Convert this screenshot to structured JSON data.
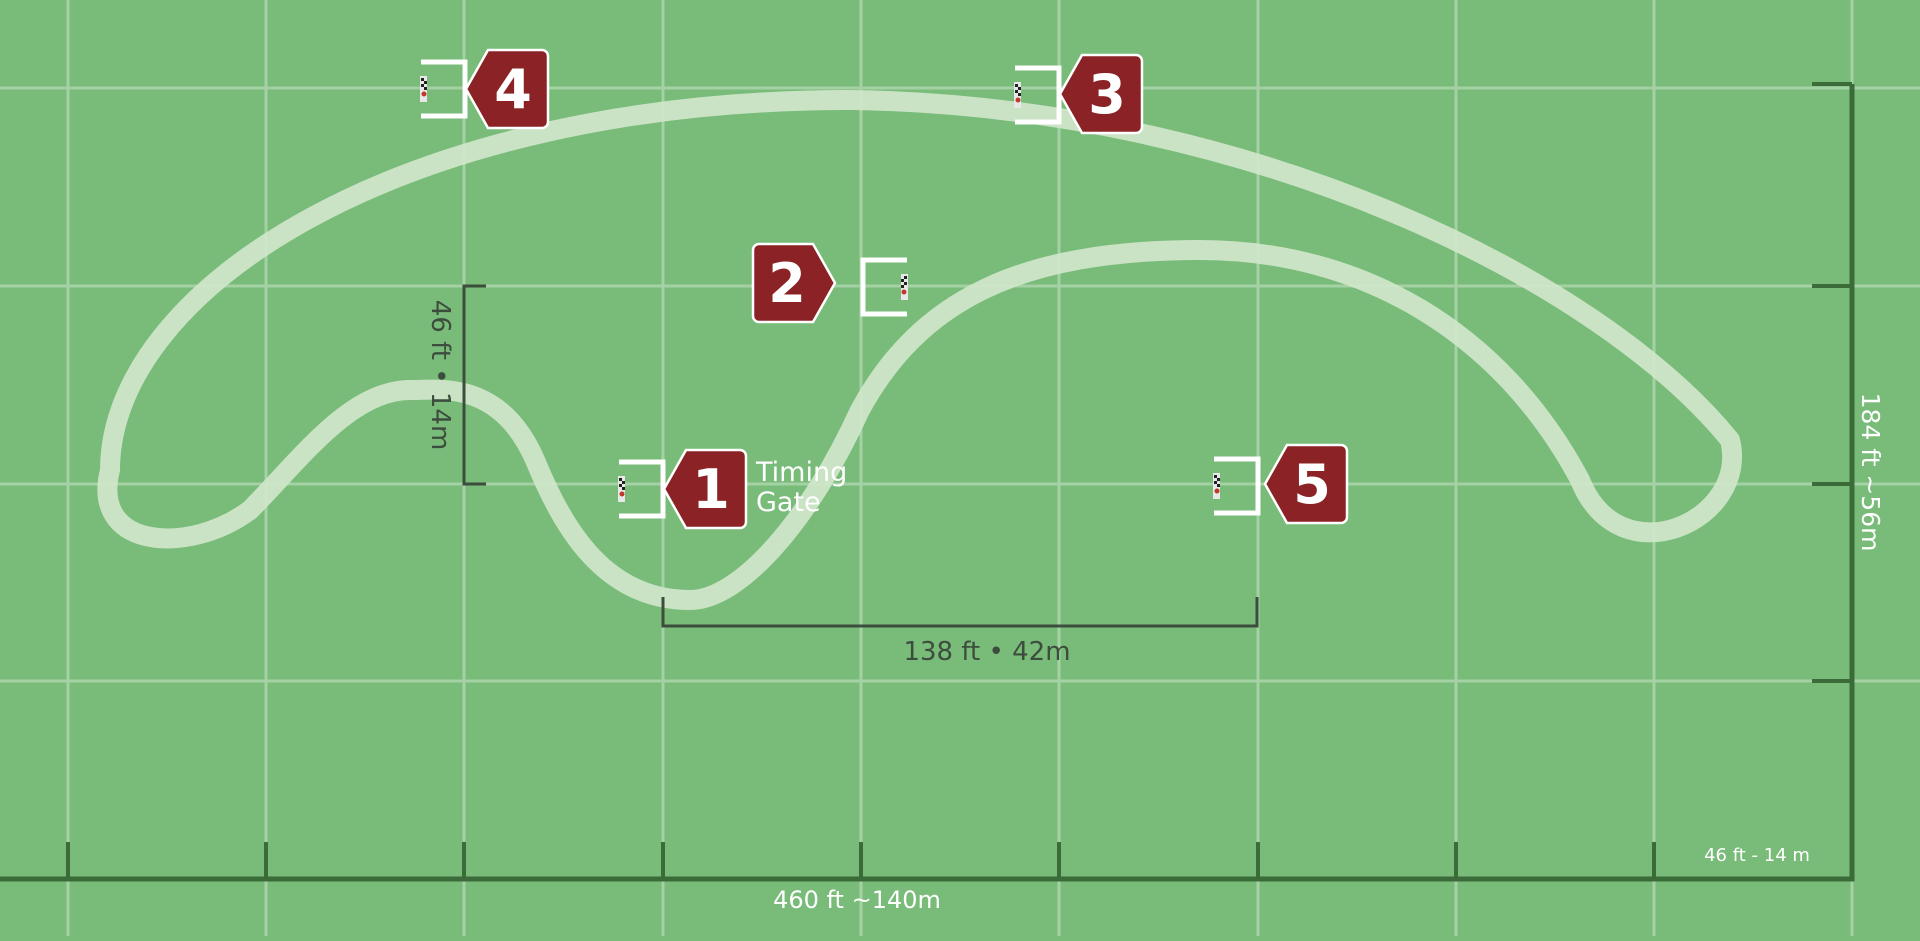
{
  "colors": {
    "field": "#79bb79",
    "grid": "#a5d2a5",
    "track": "#d2e8cc",
    "ruler": "#3a6b38",
    "marker": "#8b2326",
    "dim_text": "#3d4d3d",
    "white": "#ffffff"
  },
  "gates": [
    {
      "number": "1",
      "direction": "left",
      "icon": "gate-icon"
    },
    {
      "number": "2",
      "direction": "right",
      "icon": "gate-icon"
    },
    {
      "number": "3",
      "direction": "left",
      "icon": "gate-icon"
    },
    {
      "number": "4",
      "direction": "left",
      "icon": "gate-icon"
    },
    {
      "number": "5",
      "direction": "left",
      "icon": "gate-icon"
    }
  ],
  "timing_label": {
    "line1": "Timing",
    "line2": "Gate"
  },
  "dimensions": {
    "vertical_gap": "46 ft • 14m",
    "horizontal_gap": "138 ft • 42m",
    "total_length": "460 ft  ~140m",
    "total_width": "184 ft  ~56m",
    "grid_scale": "46 ft - 14 m"
  }
}
